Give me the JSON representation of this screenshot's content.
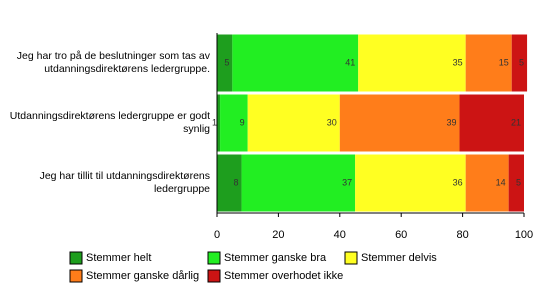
{
  "chart_data": {
    "type": "stacked-barh",
    "categories": [
      "Jeg har tro på de beslutninger som tas av utdanningsdirektørens ledergruppe.",
      "Utdanningsdirektørens ledergruppe er godt synlig",
      "Jeg har tillit til utdanningsdirektørens ledergruppe"
    ],
    "series": [
      {
        "name": "Stemmer helt",
        "color": "#1e9e1e",
        "values": [
          5,
          1,
          8
        ]
      },
      {
        "name": "Stemmer ganske bra",
        "color": "#22ee22",
        "values": [
          41,
          9,
          37
        ]
      },
      {
        "name": "Stemmer delvis",
        "color": "#ffff22",
        "values": [
          35,
          30,
          36
        ]
      },
      {
        "name": "Stemmer ganske dårlig",
        "color": "#ff7d1a",
        "values": [
          15,
          39,
          14
        ]
      },
      {
        "name": "Stemmer overhodet ikke",
        "color": "#cc1414",
        "values": [
          5,
          21,
          5
        ]
      }
    ],
    "xlim": [
      0,
      100
    ],
    "xticks": [
      0,
      20,
      40,
      60,
      80,
      100
    ]
  }
}
